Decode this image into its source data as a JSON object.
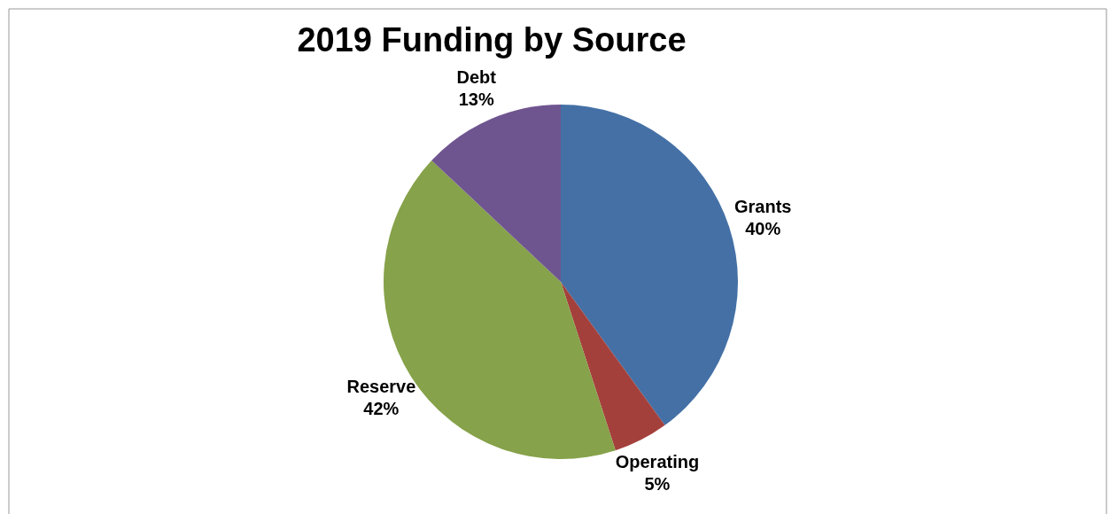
{
  "chart_data": {
    "type": "pie",
    "title": "2019 Funding by Source",
    "categories": [
      "Grants",
      "Operating",
      "Reserve",
      "Debt"
    ],
    "values": [
      40,
      5,
      42,
      13
    ],
    "value_labels": [
      "40%",
      "5%",
      "42%",
      "13%"
    ],
    "colors": [
      "#4470a6",
      "#a4403c",
      "#86a24a",
      "#6f5590"
    ]
  }
}
